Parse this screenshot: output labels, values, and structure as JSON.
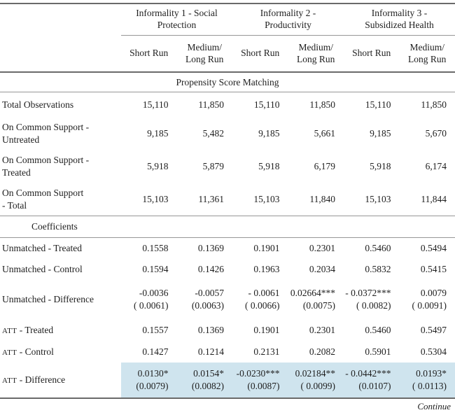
{
  "colors": {
    "highlight": "#cfe4ee",
    "rule_dark": "#6a6a6a",
    "rule_light": "#979797",
    "text": "#1e1e1e"
  },
  "header": {
    "groups": [
      {
        "title": "Informality 1 - Social\nProtection"
      },
      {
        "title": "Informality 2 -\nProductivity"
      },
      {
        "title": "Informality 3 -\nSubsidized Health"
      }
    ],
    "subcols": [
      "Short Run",
      "Medium/\nLong Run"
    ]
  },
  "sections": {
    "psm": "Propensity Score Matching",
    "coefficients": "Coefficients"
  },
  "obs_rows": [
    {
      "label": "Total Observations",
      "values": [
        "15,110",
        "11,850",
        "15,110",
        "11,850",
        "15,110",
        "11,850"
      ]
    },
    {
      "label": "On Common Support -\nUntreated",
      "values": [
        "9,185",
        "5,482",
        "9,185",
        "5,661",
        "9,185",
        "5,670"
      ]
    },
    {
      "label": "On Common Support -\nTreated",
      "values": [
        "5,918",
        "5,879",
        "5,918",
        "6,179",
        "5,918",
        "6,174"
      ]
    },
    {
      "label": "On Common Support\n- Total",
      "values": [
        "15,103",
        "11,361",
        "15,103",
        "11,840",
        "15,103",
        "11,844"
      ]
    }
  ],
  "coef": {
    "unmatched_treated": {
      "label": "Unmatched - Treated",
      "values": [
        "0.1558",
        "0.1369",
        "0.1901",
        "0.2301",
        "0.5460",
        "0.5494"
      ]
    },
    "unmatched_control": {
      "label": "Unmatched - Control",
      "values": [
        "0.1594",
        "0.1426",
        "0.1963",
        "0.2034",
        "0.5832",
        "0.5415"
      ]
    },
    "unmatched_difference": {
      "label": "Unmatched - Difference",
      "est": [
        "-0.0036",
        "-0.0057",
        "- 0.0061",
        "0.02664***",
        "- 0.0372***",
        "0.0079"
      ],
      "se": [
        "( 0.0061)",
        "(0.0063)",
        "( 0.0066)",
        "(0.0075)",
        "( 0.0082)",
        "( 0.0091)"
      ]
    },
    "att_treated": {
      "prefix": "ATT",
      "label": " - Treated",
      "values": [
        "0.1557",
        "0.1369",
        "0.1901",
        "0.2301",
        "0.5460",
        "0.5497"
      ]
    },
    "att_control": {
      "prefix": "ATT",
      "label": " - Control",
      "values": [
        "0.1427",
        "0.1214",
        "0.2131",
        "0.2082",
        "0.5901",
        "0.5304"
      ]
    },
    "att_difference": {
      "prefix": "ATT",
      "label": " - Difference",
      "est": [
        "0.0130*",
        "0.0154*",
        "-0.0230***",
        "0.02184**",
        "- 0.0442***",
        "0.0193*"
      ],
      "se": [
        "(0.0079)",
        "(0.0082)",
        "(0.0087)",
        "( 0.0099)",
        "(0.0107)",
        "( 0.0113)"
      ]
    }
  },
  "footer": {
    "continue_label": "Continue"
  }
}
